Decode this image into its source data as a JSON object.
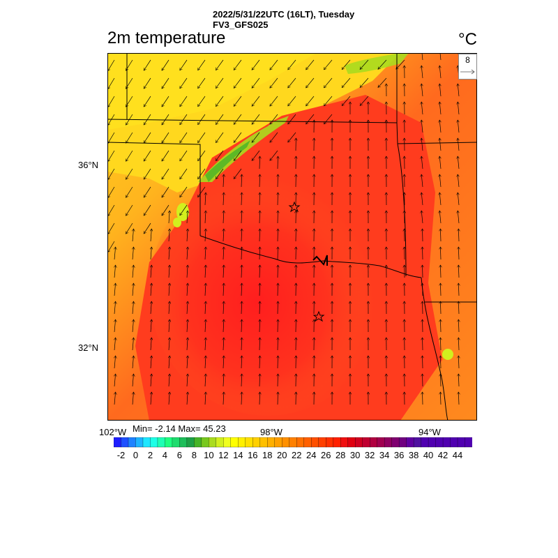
{
  "header": {
    "line1": "2022/5/31/22UTC (16LT), Tuesday",
    "line2": "FV3_GFS025"
  },
  "field": {
    "title": "2m temperature",
    "units": "°C"
  },
  "map": {
    "lat_labels": [
      "36°N",
      "32°N"
    ],
    "lon_labels": [
      "102°W",
      "98°W",
      "94°W"
    ]
  },
  "vector_legend": {
    "value": "8",
    "icon": "arrow-right-icon"
  },
  "stats": {
    "min": -2.14,
    "max": 45.23,
    "text": "Min= -2.14 Max= 45.23"
  },
  "colorbar": {
    "min": -3,
    "max": 46,
    "step": 1,
    "tick_labels": [
      "-2",
      "0",
      "2",
      "4",
      "6",
      "8",
      "10",
      "12",
      "14",
      "16",
      "18",
      "20",
      "22",
      "24",
      "26",
      "28",
      "30",
      "32",
      "34",
      "36",
      "38",
      "40",
      "42",
      "44"
    ],
    "colors": [
      "#1e1eff",
      "#1e50ff",
      "#1e82ff",
      "#1eb4ff",
      "#1ee6ff",
      "#1effe6",
      "#1effb4",
      "#1eff82",
      "#1edc6e",
      "#1ebe5a",
      "#1ea046",
      "#46b428",
      "#78c81e",
      "#aadc1e",
      "#d2f01e",
      "#f0ff1e",
      "#ffff00",
      "#fff000",
      "#ffe000",
      "#ffd000",
      "#ffc000",
      "#ffb000",
      "#ffa000",
      "#ff9000",
      "#ff8000",
      "#ff7000",
      "#ff6000",
      "#ff5000",
      "#ff4000",
      "#ff3000",
      "#ff2000",
      "#f01010",
      "#e00010",
      "#d00020",
      "#c00030",
      "#b00040",
      "#a00050",
      "#900060",
      "#800070",
      "#700080",
      "#6000a0",
      "#5010a0",
      "#5000b0",
      "#5000b0",
      "#5000b0",
      "#5000b0",
      "#5000b0",
      "#5000b0",
      "#5000b0"
    ]
  }
}
